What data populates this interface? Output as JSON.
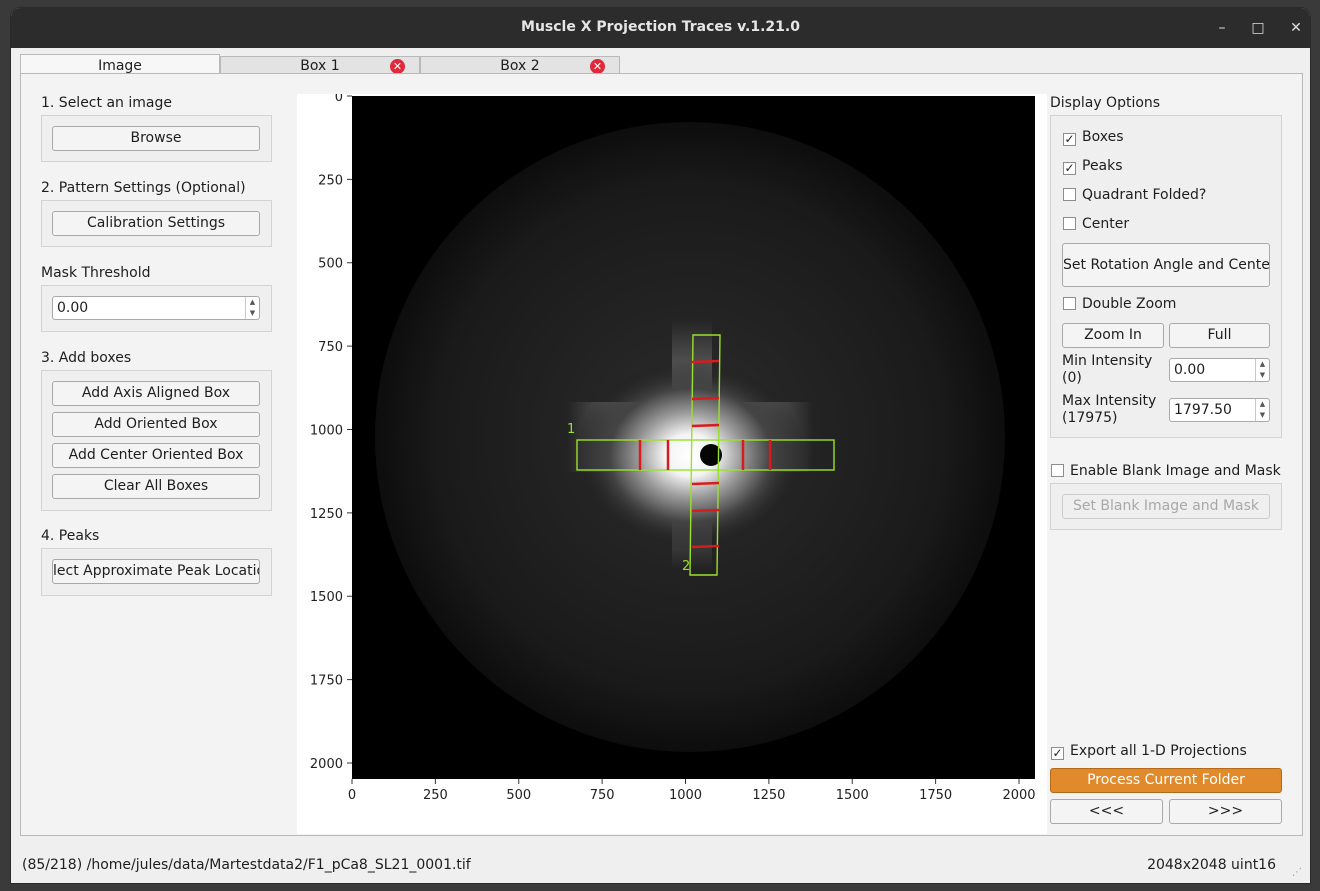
{
  "window": {
    "title": "Muscle X Projection Traces v.1.21.0",
    "min_glyph": "–",
    "max_glyph": "□",
    "close_glyph": "✕"
  },
  "tabs": [
    {
      "label": "Image",
      "active": true
    },
    {
      "label": "Box 1",
      "closable": true
    },
    {
      "label": "Box 2",
      "closable": true
    }
  ],
  "tab_close_glyph": "✕",
  "left": {
    "select_image": {
      "heading": "1. Select an image",
      "browse": "Browse"
    },
    "pattern_settings": {
      "heading": "2. Pattern Settings (Optional)",
      "calibration": "Calibration Settings"
    },
    "mask": {
      "heading": "Mask Threshold",
      "value": "0.00"
    },
    "add_boxes": {
      "heading": "3. Add boxes",
      "axis_aligned": "Add Axis Aligned Box",
      "oriented": "Add Oriented Box",
      "center_oriented": "Add Center Oriented Box",
      "clear_all": "Clear All Boxes"
    },
    "peaks": {
      "heading": "4. Peaks",
      "select": "lect Approximate Peak Locatio"
    }
  },
  "plot": {
    "x_ticks": [
      "0",
      "250",
      "500",
      "750",
      "1000",
      "1250",
      "1500",
      "1750",
      "2000"
    ],
    "y_ticks": [
      "0",
      "250",
      "500",
      "750",
      "1000",
      "1250",
      "1500",
      "1750",
      "2000"
    ],
    "box_labels": [
      "1",
      "2"
    ],
    "image_width": 2048,
    "image_height": 2048,
    "colors": {
      "box": "#9ae12c",
      "peak": "#d81b1b"
    }
  },
  "right": {
    "display": {
      "heading": "Display Options",
      "boxes": {
        "label": "Boxes",
        "checked": true
      },
      "peaks": {
        "label": "Peaks",
        "checked": true
      },
      "quadrant": {
        "label": "Quadrant Folded?",
        "checked": false
      },
      "center": {
        "label": "Center",
        "checked": false
      },
      "set_rotation": "Set Rotation Angle and Center",
      "double_zoom": {
        "label": "Double Zoom",
        "checked": false
      },
      "zoom_in": "Zoom In",
      "full": "Full",
      "min_intensity": {
        "label_line1": "Min Intensity",
        "label_line2": "(0)",
        "value": "0.00"
      },
      "max_intensity": {
        "label_line1": "Max Intensity",
        "label_line2": "(17975)",
        "value": "1797.50"
      }
    },
    "blank": {
      "label": "Enable Blank Image and Mask",
      "checked": false,
      "button": "Set Blank Image and Mask"
    },
    "export": {
      "label": "Export all 1-D Projections",
      "checked": true
    },
    "process": "Process Current Folder",
    "prev": "<<<",
    "next": ">>>"
  },
  "status": {
    "path": "(85/218) /home/jules/data/Martestdata2/F1_pCa8_SL21_0001.tif",
    "info": "2048x2048 uint16"
  }
}
